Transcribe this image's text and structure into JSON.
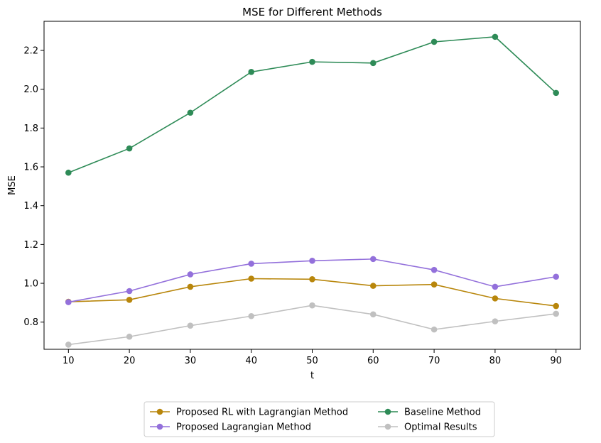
{
  "chart_data": {
    "type": "line",
    "title": "MSE for Different Methods",
    "xlabel": "t",
    "ylabel": "MSE",
    "x": [
      10,
      20,
      30,
      40,
      50,
      60,
      70,
      80,
      90
    ],
    "xlim": [
      6,
      94
    ],
    "ylim": [
      0.66,
      2.35
    ],
    "xticks": [
      10,
      20,
      30,
      40,
      50,
      60,
      70,
      80,
      90
    ],
    "yticks": [
      0.8,
      1.0,
      1.2,
      1.4,
      1.6,
      1.8,
      2.0,
      2.2
    ],
    "ytick_labels": [
      "0.8",
      "1.0",
      "1.2",
      "1.4",
      "1.6",
      "1.8",
      "2.0",
      "2.2"
    ],
    "grid": false,
    "legend_position": "bottom-center-outside",
    "legend_columns": 2,
    "series": [
      {
        "name": "Proposed RL with Lagrangian Method",
        "color": "#b8860b",
        "values": [
          0.905,
          0.915,
          0.982,
          1.024,
          1.021,
          0.987,
          0.994,
          0.922,
          0.883
        ]
      },
      {
        "name": "Proposed Lagrangian Method",
        "color": "#9370db",
        "values": [
          0.903,
          0.96,
          1.046,
          1.101,
          1.116,
          1.125,
          1.069,
          0.982,
          1.034
        ]
      },
      {
        "name": "Baseline Method",
        "color": "#2e8b57",
        "values": [
          1.57,
          1.695,
          1.879,
          2.089,
          2.141,
          2.135,
          2.244,
          2.27,
          1.981
        ]
      },
      {
        "name": "Optimal Results",
        "color": "#c0c0c0",
        "values": [
          0.684,
          0.725,
          0.782,
          0.831,
          0.886,
          0.84,
          0.762,
          0.804,
          0.843
        ]
      }
    ]
  }
}
